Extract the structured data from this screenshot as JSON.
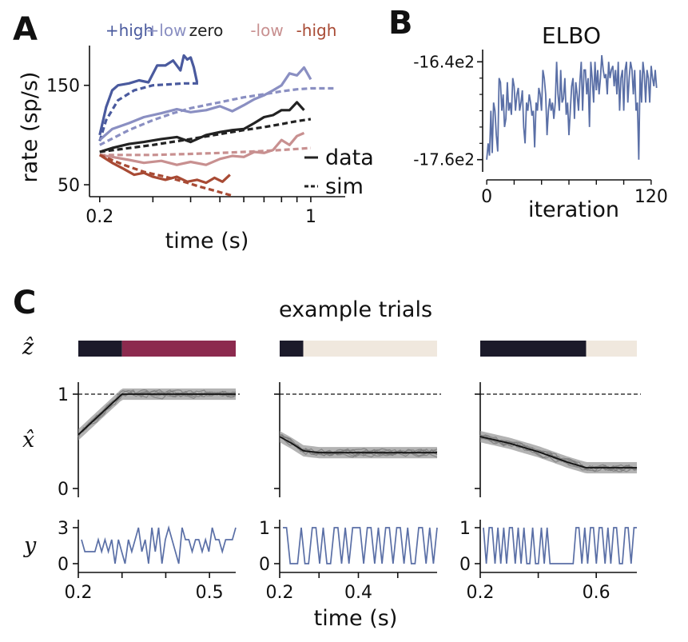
{
  "panels": {
    "a": "A",
    "b": "B",
    "c": "C"
  },
  "chart_data": [
    {
      "type": "line",
      "panel": "A",
      "xlabel": "time (s)",
      "ylabel": "rate (sp/s)",
      "xscale": "log",
      "xticks": [
        {
          "value": 0.2,
          "label": "0.2"
        },
        {
          "value": 0.3,
          "label": ""
        },
        {
          "value": 0.4,
          "label": ""
        },
        {
          "value": 0.5,
          "label": ""
        },
        {
          "value": 0.6,
          "label": ""
        },
        {
          "value": 0.7,
          "label": ""
        },
        {
          "value": 0.8,
          "label": ""
        },
        {
          "value": 0.9,
          "label": ""
        },
        {
          "value": 1.0,
          "label": "1"
        }
      ],
      "yticks": [
        50,
        150
      ],
      "ylim": [
        38,
        190
      ],
      "xlim": [
        0.185,
        1.3
      ],
      "legend": {
        "data": "data",
        "sim": "sim",
        "position": "lower-right"
      },
      "series": [
        {
          "name": "+high",
          "color": "#4a5a9e",
          "data_x": [
            0.2,
            0.21,
            0.22,
            0.23,
            0.25,
            0.27,
            0.29,
            0.31,
            0.33,
            0.35,
            0.37,
            0.38,
            0.39,
            0.4,
            0.41,
            0.42
          ],
          "data_y": [
            100,
            128,
            145,
            150,
            152,
            155,
            153,
            170,
            170,
            175,
            165,
            180,
            176,
            178,
            168,
            153
          ],
          "sim_x": [
            0.2,
            0.21,
            0.23,
            0.26,
            0.3,
            0.34,
            0.38,
            0.43
          ],
          "sim_y": [
            94,
            115,
            135,
            145,
            150,
            151,
            152,
            152
          ]
        },
        {
          "name": "+low",
          "color": "#8a8fc2",
          "data_x": [
            0.2,
            0.22,
            0.25,
            0.28,
            0.32,
            0.36,
            0.4,
            0.45,
            0.5,
            0.55,
            0.6,
            0.65,
            0.7,
            0.75,
            0.8,
            0.85,
            0.9,
            0.95,
            1.0
          ],
          "data_y": [
            95,
            106,
            112,
            118,
            122,
            126,
            123,
            125,
            129,
            124,
            130,
            136,
            140,
            145,
            150,
            162,
            160,
            168,
            156
          ],
          "sim_x": [
            0.2,
            0.25,
            0.3,
            0.35,
            0.4,
            0.5,
            0.6,
            0.7,
            0.8,
            0.9,
            1.0,
            1.1,
            1.2
          ],
          "sim_y": [
            90,
            105,
            115,
            122,
            127,
            133,
            138,
            141,
            144,
            146,
            147,
            147,
            147
          ]
        },
        {
          "name": "zero",
          "color": "#222222",
          "data_x": [
            0.2,
            0.22,
            0.25,
            0.28,
            0.32,
            0.36,
            0.4,
            0.45,
            0.5,
            0.55,
            0.6,
            0.65,
            0.7,
            0.75,
            0.8,
            0.85,
            0.9,
            0.95
          ],
          "data_y": [
            83,
            87,
            91,
            93,
            96,
            98,
            93,
            100,
            103,
            105,
            106,
            112,
            118,
            120,
            125,
            125,
            133,
            125
          ],
          "sim_x": [
            0.2,
            0.3,
            0.4,
            0.5,
            0.6,
            0.7,
            0.8,
            0.9,
            1.0
          ],
          "sim_y": [
            83,
            90,
            96,
            101,
            105,
            108,
            111,
            114,
            116
          ]
        },
        {
          "name": "-low",
          "color": "#c89090",
          "data_x": [
            0.2,
            0.22,
            0.25,
            0.28,
            0.32,
            0.36,
            0.4,
            0.45,
            0.5,
            0.55,
            0.6,
            0.65,
            0.7,
            0.75,
            0.8,
            0.85,
            0.9,
            0.95
          ],
          "data_y": [
            80,
            78,
            75,
            72,
            74,
            70,
            73,
            70,
            76,
            79,
            78,
            83,
            82,
            85,
            95,
            90,
            99,
            102
          ],
          "sim_x": [
            0.2,
            0.3,
            0.4,
            0.5,
            0.6,
            0.7,
            0.8,
            0.9,
            1.0
          ],
          "sim_y": [
            80,
            80,
            81,
            82,
            83,
            84,
            85,
            86,
            87
          ]
        },
        {
          "name": "-high",
          "color": "#a84a34",
          "data_x": [
            0.2,
            0.22,
            0.24,
            0.26,
            0.28,
            0.3,
            0.33,
            0.36,
            0.39,
            0.42,
            0.45,
            0.48,
            0.51,
            0.54
          ],
          "data_y": [
            80,
            72,
            66,
            60,
            62,
            58,
            55,
            58,
            53,
            55,
            52,
            57,
            53,
            60
          ],
          "sim_x": [
            0.2,
            0.24,
            0.28,
            0.33,
            0.38,
            0.43,
            0.48,
            0.55
          ],
          "sim_y": [
            80,
            70,
            63,
            58,
            53,
            48,
            44,
            39
          ]
        }
      ]
    },
    {
      "type": "line",
      "panel": "B",
      "title": "ELBO",
      "xlabel": "iteration",
      "xticks": [
        {
          "value": 0,
          "label": "0"
        },
        {
          "value": 120,
          "label": "120"
        }
      ],
      "yticks": [
        {
          "value": -1640,
          "label": "-16.4e2"
        },
        {
          "value": -1760,
          "label": "-17.6e2"
        }
      ],
      "ylim": [
        -1775,
        -1625
      ],
      "xlim": [
        -3,
        130
      ],
      "color": "#5a6fa6",
      "y": [
        -1760,
        -1740,
        -1755,
        -1700,
        -1752,
        -1690,
        -1700,
        -1730,
        -1750,
        -1660,
        -1665,
        -1700,
        -1680,
        -1720,
        -1710,
        -1665,
        -1700,
        -1690,
        -1705,
        -1660,
        -1670,
        -1700,
        -1680,
        -1672,
        -1700,
        -1690,
        -1675,
        -1720,
        -1740,
        -1690,
        -1700,
        -1680,
        -1690,
        -1706,
        -1700,
        -1745,
        -1690,
        -1700,
        -1672,
        -1680,
        -1700,
        -1650,
        -1660,
        -1680,
        -1730,
        -1700,
        -1685,
        -1700,
        -1690,
        -1710,
        -1690,
        -1640,
        -1680,
        -1700,
        -1650,
        -1690,
        -1685,
        -1660,
        -1705,
        -1690,
        -1730,
        -1700,
        -1670,
        -1660,
        -1710,
        -1665,
        -1680,
        -1700,
        -1664,
        -1640,
        -1700,
        -1650,
        -1650,
        -1680,
        -1660,
        -1720,
        -1640,
        -1660,
        -1690,
        -1640,
        -1675,
        -1650,
        -1680,
        -1660,
        -1632,
        -1650,
        -1660,
        -1655,
        -1680,
        -1640,
        -1660,
        -1650,
        -1645,
        -1670,
        -1650,
        -1680,
        -1640,
        -1700,
        -1660,
        -1650,
        -1700,
        -1650,
        -1640,
        -1690,
        -1660,
        -1640,
        -1650,
        -1680,
        -1650,
        -1700,
        -1690,
        -1760,
        -1650,
        -1690,
        -1640,
        -1655,
        -1690,
        -1650,
        -1660,
        -1690,
        -1645,
        -1660,
        -1670,
        -1650,
        -1672
      ]
    },
    {
      "type": "multi-panel",
      "panel": "C",
      "title": "example trials",
      "xlabel": "time (s)",
      "row_labels": {
        "z": "ẑ",
        "x": "x̂",
        "y": "y"
      },
      "colors": {
        "dark_state": "#1b1a2a",
        "high_state": "#8c2a4e",
        "low_state": "#f0e8de",
        "y_line": "#5a6fa6",
        "x_mean": "#111111",
        "x_band": "#9a9a9a"
      },
      "x_yticks": [
        {
          "value": 0,
          "label": "0"
        },
        {
          "value": 1,
          "label": "1"
        }
      ],
      "trials": [
        {
          "xlim": [
            0.2,
            0.56
          ],
          "xticks": [
            {
              "value": 0.2,
              "label": "0.2"
            },
            {
              "value": 0.3,
              "label": ""
            },
            {
              "value": 0.4,
              "label": ""
            },
            {
              "value": 0.5,
              "label": "0.5"
            }
          ],
          "z_segments": [
            {
              "start": 0.2,
              "end": 0.3,
              "state": "dark_state"
            },
            {
              "start": 0.3,
              "end": 0.56,
              "state": "high_state"
            }
          ],
          "x_mean_x": [
            0.2,
            0.3,
            0.56
          ],
          "x_mean_y": [
            0.57,
            1.0,
            1.0
          ],
          "y_ymax": 3,
          "y_ticks": [
            {
              "value": 0,
              "label": "0"
            },
            {
              "value": 3,
              "label": "3"
            }
          ],
          "y_values": [
            2,
            1,
            1,
            1,
            1,
            2,
            1,
            2,
            1,
            2,
            0,
            2,
            1,
            0,
            2,
            1,
            2,
            3,
            1,
            2,
            0,
            3,
            1,
            3,
            0,
            2,
            3,
            2,
            1,
            0,
            3,
            2,
            2,
            1,
            2,
            2,
            1,
            2,
            1,
            3,
            2,
            2,
            1,
            2,
            2,
            2,
            3
          ]
        },
        {
          "xlim": [
            0.2,
            0.6
          ],
          "xticks": [
            {
              "value": 0.2,
              "label": "0.2"
            },
            {
              "value": 0.3,
              "label": ""
            },
            {
              "value": 0.4,
              "label": "0.4"
            },
            {
              "value": 0.5,
              "label": ""
            }
          ],
          "z_segments": [
            {
              "start": 0.2,
              "end": 0.26,
              "state": "dark_state"
            },
            {
              "start": 0.26,
              "end": 0.6,
              "state": "low_state"
            }
          ],
          "x_mean_x": [
            0.2,
            0.23,
            0.26,
            0.3,
            0.6
          ],
          "x_mean_y": [
            0.55,
            0.48,
            0.4,
            0.38,
            0.38
          ],
          "y_ymax": 1,
          "y_ticks": [
            {
              "value": 0,
              "label": "0"
            },
            {
              "value": 1,
              "label": "1"
            }
          ],
          "y_values": [
            1,
            1,
            0,
            0,
            0,
            1,
            0,
            0,
            1,
            1,
            0,
            1,
            0,
            0,
            1,
            1,
            0,
            1,
            0,
            1,
            1,
            1,
            0,
            1,
            1,
            0,
            1,
            0,
            1,
            1,
            0,
            1,
            1,
            0,
            1,
            0,
            0,
            1,
            1,
            0,
            1,
            0,
            1
          ]
        },
        {
          "xlim": [
            0.2,
            0.74
          ],
          "xticks": [
            {
              "value": 0.2,
              "label": "0.2"
            },
            {
              "value": 0.4,
              "label": ""
            },
            {
              "value": 0.6,
              "label": "0.6"
            }
          ],
          "z_segments": [
            {
              "start": 0.2,
              "end": 0.565,
              "state": "dark_state"
            },
            {
              "start": 0.565,
              "end": 0.74,
              "state": "low_state"
            }
          ],
          "x_mean_x": [
            0.2,
            0.3,
            0.4,
            0.5,
            0.565,
            0.74
          ],
          "x_mean_y": [
            0.55,
            0.48,
            0.39,
            0.28,
            0.22,
            0.22
          ],
          "y_ymax": 1,
          "y_ticks": [
            {
              "value": 0,
              "label": "0"
            },
            {
              "value": 1,
              "label": "1"
            }
          ],
          "y_values": [
            1,
            0,
            1,
            1,
            0,
            1,
            0,
            1,
            0,
            1,
            1,
            0,
            1,
            0,
            1,
            0,
            0,
            1,
            0,
            0,
            1,
            0,
            1,
            0,
            0,
            0,
            0,
            0,
            0,
            0,
            0,
            0,
            1,
            1,
            0,
            1,
            0,
            1,
            1,
            0,
            1,
            1,
            0,
            1,
            0,
            1,
            1,
            0,
            0,
            1,
            1,
            0,
            1,
            1
          ]
        }
      ]
    }
  ]
}
